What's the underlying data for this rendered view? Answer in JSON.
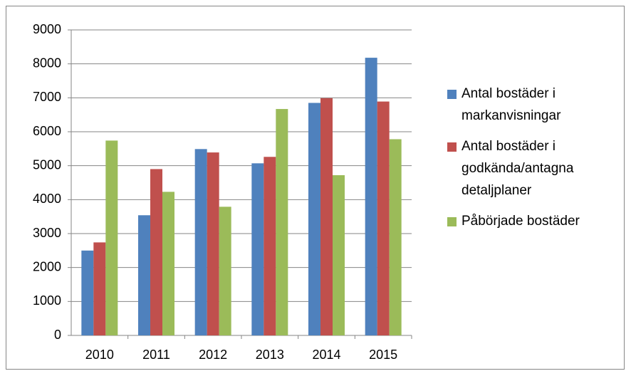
{
  "chart_data": {
    "type": "bar",
    "categories": [
      "2010",
      "2011",
      "2012",
      "2013",
      "2014",
      "2015"
    ],
    "series": [
      {
        "name": "Antal bostäder i markanvisningar",
        "color": "#4f81bd",
        "values": [
          2500,
          3540,
          5490,
          5070,
          6850,
          8180
        ]
      },
      {
        "name": "Antal bostäder i godkända/antagna detaljplaner",
        "color": "#c0504d",
        "values": [
          2740,
          4900,
          5390,
          5260,
          6990,
          6890
        ]
      },
      {
        "name": "Påbörjade bostäder",
        "color": "#9bbb59",
        "values": [
          5740,
          4230,
          3790,
          6670,
          4720,
          5780
        ]
      }
    ],
    "ylim": [
      0,
      9000
    ],
    "yticks": [
      0,
      1000,
      2000,
      3000,
      4000,
      5000,
      6000,
      7000,
      8000,
      9000
    ],
    "grid": true,
    "legend": "right"
  }
}
